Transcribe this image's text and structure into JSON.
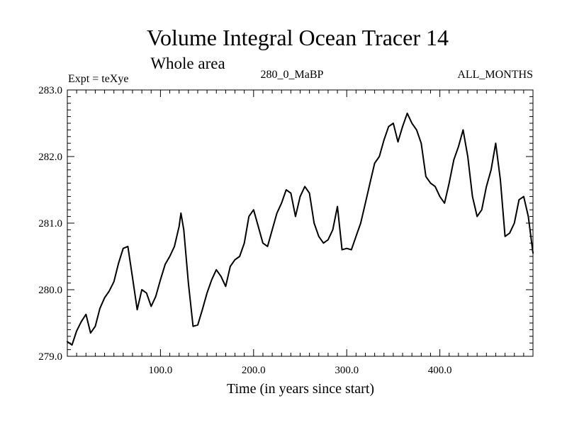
{
  "chart_data": {
    "type": "line",
    "title": "Volume Integral Ocean Tracer 14",
    "subtitle": "Whole area",
    "annotations": {
      "left": "Expt = teXye",
      "center": "280_0_MaBP",
      "right": "ALL_MONTHS"
    },
    "xlabel": "Time (in years since start)",
    "ylabel": "",
    "xlim": [
      0,
      500
    ],
    "ylim": [
      279.0,
      283.0
    ],
    "x_ticks": [
      100,
      200,
      300,
      400
    ],
    "x_tick_labels": [
      "100.0",
      "200.0",
      "300.0",
      "400.0"
    ],
    "y_ticks": [
      279.0,
      280.0,
      281.0,
      282.0,
      283.0
    ],
    "y_tick_labels": [
      "279.0",
      "280.0",
      "281.0",
      "282.0",
      "283.0"
    ],
    "grid": false,
    "line_color": "#000000",
    "series": [
      {
        "x": [
          0,
          5,
          10,
          15,
          20,
          25,
          30,
          35,
          40,
          45,
          50,
          55,
          60,
          65,
          70,
          75,
          80,
          85,
          90,
          95,
          100,
          105,
          110,
          115,
          120,
          122,
          125,
          130,
          135,
          140,
          145,
          150,
          155,
          160,
          165,
          170,
          175,
          180,
          185,
          190,
          195,
          200,
          205,
          210,
          215,
          220,
          225,
          230,
          235,
          240,
          245,
          250,
          255,
          260,
          265,
          270,
          275,
          280,
          285,
          290,
          295,
          300,
          305,
          310,
          315,
          320,
          325,
          330,
          335,
          340,
          345,
          350,
          355,
          360,
          365,
          370,
          375,
          380,
          385,
          390,
          395,
          400,
          405,
          410,
          415,
          420,
          425,
          430,
          435,
          440,
          445,
          450,
          455,
          460,
          465,
          470,
          475,
          480,
          485,
          490,
          495,
          500
        ],
        "y": [
          279.22,
          279.17,
          279.38,
          279.52,
          279.63,
          279.35,
          279.45,
          279.72,
          279.88,
          279.98,
          280.12,
          280.4,
          280.62,
          280.65,
          280.18,
          279.7,
          280.0,
          279.95,
          279.75,
          279.9,
          280.15,
          280.38,
          280.5,
          280.65,
          280.95,
          281.15,
          280.9,
          280.1,
          279.45,
          279.47,
          279.7,
          279.95,
          280.15,
          280.3,
          280.2,
          280.05,
          280.35,
          280.45,
          280.5,
          280.7,
          281.1,
          281.2,
          280.95,
          280.7,
          280.65,
          280.9,
          281.15,
          281.3,
          281.5,
          281.45,
          281.1,
          281.4,
          281.55,
          281.45,
          281.0,
          280.8,
          280.7,
          280.75,
          280.9,
          281.25,
          280.6,
          280.62,
          280.6,
          280.8,
          281.0,
          281.3,
          281.6,
          281.9,
          282.0,
          282.25,
          282.45,
          282.5,
          282.22,
          282.45,
          282.65,
          282.5,
          282.4,
          282.2,
          281.7,
          281.6,
          281.55,
          281.4,
          281.3,
          281.6,
          281.95,
          282.15,
          282.4,
          282.0,
          281.4,
          281.1,
          281.2,
          281.55,
          281.8,
          282.2,
          281.65,
          280.8,
          280.85,
          281.0,
          281.35,
          281.4,
          281.1,
          280.55
        ]
      }
    ]
  }
}
